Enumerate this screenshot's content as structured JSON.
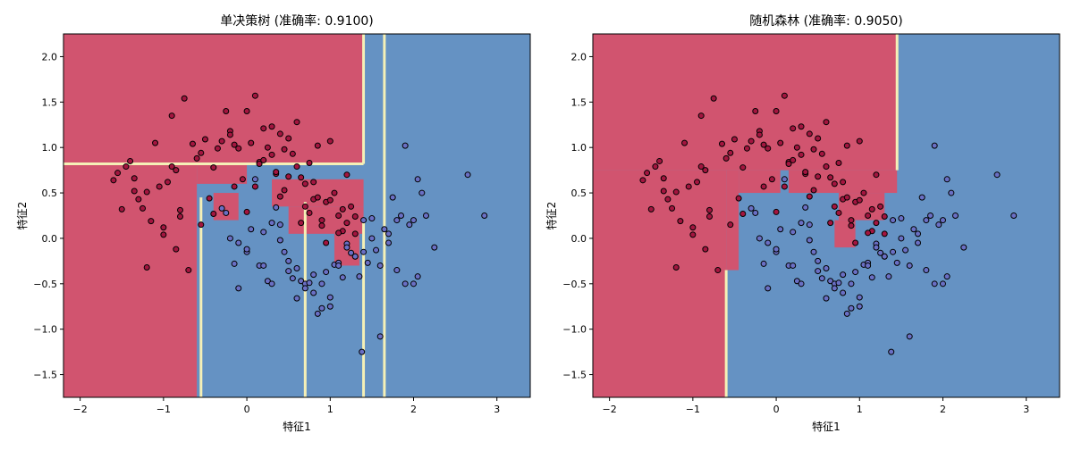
{
  "figure": {
    "colors": {
      "class0_region": "#d1546f",
      "class1_region": "#6592c3",
      "boundary_band": "#f5f0b7",
      "class0_point": "#a3153f",
      "class1_point": "#6a6fc4",
      "point_edge": "#000000"
    }
  },
  "chart_data": [
    {
      "type": "scatter",
      "title": "单决策树 (准确率: 0.9100)",
      "xlabel": "特征1",
      "ylabel": "特征2",
      "xlim": [
        -2.2,
        3.4
      ],
      "ylim": [
        -1.75,
        2.25
      ],
      "xticks": [
        -2,
        -1,
        0,
        1,
        2,
        3
      ],
      "yticks": [
        -1.5,
        -1.0,
        -0.5,
        0.0,
        0.5,
        1.0,
        1.5,
        2.0
      ],
      "ytick_labels": [
        "−1.5",
        "−1.0",
        "−0.5",
        "0.0",
        "0.5",
        "1.0",
        "1.5",
        "2.0"
      ],
      "xtick_labels": [
        "−2",
        "−1",
        "0",
        "1",
        "2",
        "3"
      ],
      "grid": false,
      "background_regions": [
        {
          "class": 1,
          "x": [
            -2.2,
            3.4
          ],
          "y": [
            -1.75,
            2.25
          ]
        },
        {
          "class": 0,
          "x": [
            -2.2,
            1.4
          ],
          "y": [
            0.82,
            2.25
          ]
        },
        {
          "class": 0,
          "x": [
            -2.2,
            -0.6
          ],
          "y": [
            -1.75,
            0.82
          ]
        },
        {
          "class": 0,
          "x": [
            -0.6,
            0.0
          ],
          "y": [
            0.6,
            0.82
          ]
        },
        {
          "class": 0,
          "x": [
            0.3,
            1.4
          ],
          "y": [
            0.35,
            0.65
          ]
        },
        {
          "class": 0,
          "x": [
            0.5,
            1.4
          ],
          "y": [
            0.05,
            0.35
          ]
        },
        {
          "class": 0,
          "x": [
            1.05,
            1.35
          ],
          "y": [
            -0.3,
            0.05
          ]
        },
        {
          "class": 0,
          "x": [
            -0.4,
            -0.1
          ],
          "y": [
            0.2,
            0.5
          ]
        }
      ],
      "boundary_lines": [
        {
          "axis": "x",
          "value": 1.4,
          "from": 0.82,
          "to": 2.25
        },
        {
          "axis": "x",
          "value": 1.65,
          "from": -1.75,
          "to": 2.25
        },
        {
          "axis": "y",
          "value": 0.82,
          "from": -2.2,
          "to": 1.4
        },
        {
          "axis": "x",
          "value": -0.55,
          "from": -1.75,
          "to": 0.45
        },
        {
          "axis": "x",
          "value": 0.7,
          "from": -1.75,
          "to": 0.4
        },
        {
          "axis": "x",
          "value": 1.4,
          "from": -1.75,
          "to": 0.2
        }
      ],
      "series": [
        {
          "class": 0,
          "x": [
            -1.6,
            -1.55,
            -1.45,
            -1.4,
            -1.35,
            -1.3,
            -1.25,
            -1.2,
            -1.15,
            -1.05,
            -1.0,
            -0.95,
            -0.9,
            -0.85,
            -0.8,
            -0.75,
            -0.7,
            -0.65,
            -0.6,
            -0.55,
            -0.5,
            -0.45,
            -0.4,
            -0.35,
            -0.3,
            -0.25,
            -0.2,
            -0.15,
            -0.1,
            -0.05,
            0.0,
            0.05,
            0.1,
            0.15,
            0.2,
            0.25,
            0.3,
            0.35,
            0.4,
            0.45,
            0.5,
            0.55,
            0.6,
            0.65,
            0.7,
            0.75,
            0.8,
            0.85,
            0.9,
            0.95,
            1.0,
            1.05,
            1.1,
            1.15,
            1.2,
            1.25,
            1.3,
            -1.0,
            -0.8,
            -1.2,
            -0.4,
            -0.2,
            0.1,
            0.3,
            0.5,
            0.7,
            0.9,
            1.1,
            1.3,
            0.2,
            0.4,
            0.6,
            0.8,
            1.0,
            1.2,
            -1.5,
            -1.1,
            -0.9,
            0.0,
            -1.35,
            -0.85,
            -0.55,
            0.95,
            0.65,
            0.35,
            0.75,
            1.15,
            -0.15,
            0.15,
            0.45,
            0.85
          ],
          "y": [
            0.64,
            0.72,
            0.79,
            0.85,
            0.52,
            0.43,
            0.33,
            0.51,
            0.19,
            0.57,
            0.12,
            0.62,
            0.79,
            0.75,
            0.31,
            1.54,
            -0.35,
            1.04,
            0.88,
            0.94,
            1.09,
            0.44,
            0.78,
            0.99,
            1.07,
            1.4,
            1.18,
            1.03,
            0.99,
            0.65,
            1.4,
            1.05,
            1.57,
            0.84,
            1.21,
            1.0,
            0.92,
            0.71,
            1.15,
            0.53,
            1.1,
            0.93,
            1.28,
            0.67,
            0.6,
            0.83,
            0.43,
            1.02,
            0.2,
            0.4,
            1.07,
            0.5,
            0.25,
            0.08,
            0.17,
            0.35,
            0.05,
            0.04,
            0.24,
            -0.32,
            0.27,
            1.14,
            0.57,
            1.23,
            0.68,
            0.35,
            0.14,
            0.06,
            0.24,
            0.86,
            0.46,
            0.79,
            0.62,
            0.42,
            0.7,
            0.32,
            1.05,
            1.35,
            0.29,
            0.66,
            -0.12,
            0.15,
            -0.05,
            0.17,
            0.73,
            0.28,
            0.32,
            0.57,
            0.82,
            0.98,
            0.45
          ],
          "point_color": "#a3153f"
        },
        {
          "class": 1,
          "x": [
            -0.25,
            -0.15,
            -0.1,
            0.0,
            0.05,
            0.1,
            0.15,
            0.2,
            0.25,
            0.3,
            0.35,
            0.4,
            0.45,
            0.5,
            0.55,
            0.6,
            0.65,
            0.7,
            0.75,
            0.8,
            0.85,
            0.9,
            0.95,
            1.0,
            1.05,
            1.1,
            1.15,
            1.2,
            1.25,
            1.3,
            1.35,
            1.4,
            1.45,
            1.5,
            1.55,
            1.6,
            1.65,
            1.7,
            1.75,
            1.8,
            1.85,
            1.9,
            1.95,
            2.0,
            2.05,
            2.1,
            2.15,
            2.25,
            2.65,
            2.85,
            1.6,
            1.38,
            0.9,
            0.6,
            0.3,
            -0.2,
            -0.1,
            0.2,
            0.5,
            0.8,
            1.1,
            1.4,
            1.7,
            2.0,
            0.7,
            1.0,
            1.3,
            0.0,
            -0.3,
            1.9,
            1.5,
            1.2,
            0.4,
            1.8,
            2.05
          ],
          "y": [
            0.28,
            -0.28,
            -0.55,
            -0.15,
            0.1,
            0.65,
            -0.3,
            0.07,
            -0.47,
            0.17,
            0.34,
            -0.02,
            -0.15,
            -0.36,
            -0.44,
            -0.33,
            -0.47,
            -0.5,
            -0.49,
            -0.6,
            -0.83,
            -0.5,
            -0.37,
            -0.75,
            -0.29,
            -0.27,
            -0.43,
            -0.06,
            -0.16,
            -0.2,
            -0.42,
            0.2,
            -0.27,
            0.22,
            -0.13,
            -0.3,
            0.1,
            -0.05,
            0.45,
            0.2,
            0.25,
            1.02,
            0.15,
            0.2,
            0.65,
            0.5,
            0.25,
            -0.1,
            0.7,
            0.25,
            -1.08,
            -1.25,
            -0.77,
            -0.66,
            -0.5,
            0.0,
            -0.05,
            -0.3,
            -0.25,
            -0.4,
            -0.3,
            -0.15,
            0.05,
            -0.5,
            -0.55,
            -0.65,
            -0.2,
            -0.12,
            0.33,
            -0.5,
            0.0,
            -0.1,
            0.15,
            -0.35,
            -0.42
          ],
          "point_color": "#6a6fc4"
        }
      ]
    },
    {
      "type": "scatter",
      "title": "随机森林 (准确率: 0.9050)",
      "xlabel": "特征1",
      "ylabel": "特征2",
      "xlim": [
        -2.2,
        3.4
      ],
      "ylim": [
        -1.75,
        2.25
      ],
      "xticks": [
        -2,
        -1,
        0,
        1,
        2,
        3
      ],
      "yticks": [
        -1.5,
        -1.0,
        -0.5,
        0.0,
        0.5,
        1.0,
        1.5,
        2.0
      ],
      "ytick_labels": [
        "−1.5",
        "−1.0",
        "−0.5",
        "0.0",
        "0.5",
        "1.0",
        "1.5",
        "2.0"
      ],
      "xtick_labels": [
        "−2",
        "−1",
        "0",
        "1",
        "2",
        "3"
      ],
      "grid": false,
      "background_regions": [
        {
          "class": 1,
          "x": [
            -2.2,
            3.4
          ],
          "y": [
            -1.75,
            2.25
          ]
        },
        {
          "class": 0,
          "x": [
            -2.2,
            1.45
          ],
          "y": [
            0.75,
            2.25
          ]
        },
        {
          "class": 0,
          "x": [
            -2.2,
            -0.6
          ],
          "y": [
            -1.75,
            0.75
          ]
        },
        {
          "class": 0,
          "x": [
            -0.6,
            -0.45
          ],
          "y": [
            -0.35,
            0.75
          ]
        },
        {
          "class": 0,
          "x": [
            -0.45,
            0.05
          ],
          "y": [
            0.5,
            0.75
          ]
        },
        {
          "class": 0,
          "x": [
            0.15,
            1.45
          ],
          "y": [
            0.5,
            0.75
          ]
        },
        {
          "class": 0,
          "x": [
            0.75,
            1.3
          ],
          "y": [
            0.2,
            0.5
          ]
        },
        {
          "class": 0,
          "x": [
            0.7,
            0.95
          ],
          "y": [
            -0.1,
            0.2
          ]
        }
      ],
      "boundary_lines": [
        {
          "axis": "x",
          "value": 1.45,
          "from": 0.75,
          "to": 2.25
        },
        {
          "axis": "x",
          "value": -0.6,
          "from": -1.75,
          "to": -0.35
        }
      ],
      "series": [
        {
          "class": 0,
          "x": [
            -1.6,
            -1.55,
            -1.45,
            -1.4,
            -1.35,
            -1.3,
            -1.25,
            -1.2,
            -1.15,
            -1.05,
            -1.0,
            -0.95,
            -0.9,
            -0.85,
            -0.8,
            -0.75,
            -0.7,
            -0.65,
            -0.6,
            -0.55,
            -0.5,
            -0.45,
            -0.4,
            -0.35,
            -0.3,
            -0.25,
            -0.2,
            -0.15,
            -0.1,
            -0.05,
            0.0,
            0.05,
            0.1,
            0.15,
            0.2,
            0.25,
            0.3,
            0.35,
            0.4,
            0.45,
            0.5,
            0.55,
            0.6,
            0.65,
            0.7,
            0.75,
            0.8,
            0.85,
            0.9,
            0.95,
            1.0,
            1.05,
            1.1,
            1.15,
            1.2,
            1.25,
            1.3,
            -1.0,
            -0.8,
            -1.2,
            -0.4,
            -0.2,
            0.1,
            0.3,
            0.5,
            0.7,
            0.9,
            1.1,
            1.3,
            0.2,
            0.4,
            0.6,
            0.8,
            1.0,
            1.2,
            -1.5,
            -1.1,
            -0.9,
            0.0,
            -1.35,
            -0.85,
            -0.55,
            0.95,
            0.65,
            0.35,
            0.75,
            1.15,
            -0.15,
            0.15,
            0.45,
            0.85
          ],
          "y": [
            0.64,
            0.72,
            0.79,
            0.85,
            0.52,
            0.43,
            0.33,
            0.51,
            0.19,
            0.57,
            0.12,
            0.62,
            0.79,
            0.75,
            0.31,
            1.54,
            -0.35,
            1.04,
            0.88,
            0.94,
            1.09,
            0.44,
            0.78,
            0.99,
            1.07,
            1.4,
            1.18,
            1.03,
            0.99,
            0.65,
            1.4,
            1.05,
            1.57,
            0.84,
            1.21,
            1.0,
            0.92,
            0.71,
            1.15,
            0.53,
            1.1,
            0.93,
            1.28,
            0.67,
            0.6,
            0.83,
            0.43,
            1.02,
            0.2,
            0.4,
            1.07,
            0.5,
            0.25,
            0.08,
            0.17,
            0.35,
            0.05,
            0.04,
            0.24,
            -0.32,
            0.27,
            1.14,
            0.57,
            1.23,
            0.68,
            0.35,
            0.14,
            0.06,
            0.24,
            0.86,
            0.46,
            0.79,
            0.62,
            0.42,
            0.7,
            0.32,
            1.05,
            1.35,
            0.29,
            0.66,
            -0.12,
            0.15,
            -0.05,
            0.17,
            0.73,
            0.28,
            0.32,
            0.57,
            0.82,
            0.98,
            0.45
          ],
          "point_color": "#a3153f"
        },
        {
          "class": 1,
          "x": [
            -0.25,
            -0.15,
            -0.1,
            0.0,
            0.05,
            0.1,
            0.15,
            0.2,
            0.25,
            0.3,
            0.35,
            0.4,
            0.45,
            0.5,
            0.55,
            0.6,
            0.65,
            0.7,
            0.75,
            0.8,
            0.85,
            0.9,
            0.95,
            1.0,
            1.05,
            1.1,
            1.15,
            1.2,
            1.25,
            1.3,
            1.35,
            1.4,
            1.45,
            1.5,
            1.55,
            1.6,
            1.65,
            1.7,
            1.75,
            1.8,
            1.85,
            1.9,
            1.95,
            2.0,
            2.05,
            2.1,
            2.15,
            2.25,
            2.65,
            2.85,
            1.6,
            1.38,
            0.9,
            0.6,
            0.3,
            -0.2,
            -0.1,
            0.2,
            0.5,
            0.8,
            1.1,
            1.4,
            1.7,
            2.0,
            0.7,
            1.0,
            1.3,
            0.0,
            -0.3,
            1.9,
            1.5,
            1.2,
            0.4,
            1.8,
            2.05
          ],
          "y": [
            0.28,
            -0.28,
            -0.55,
            -0.15,
            0.1,
            0.65,
            -0.3,
            0.07,
            -0.47,
            0.17,
            0.34,
            -0.02,
            -0.15,
            -0.36,
            -0.44,
            -0.33,
            -0.47,
            -0.5,
            -0.49,
            -0.6,
            -0.83,
            -0.5,
            -0.37,
            -0.75,
            -0.29,
            -0.27,
            -0.43,
            -0.06,
            -0.16,
            -0.2,
            -0.42,
            0.2,
            -0.27,
            0.22,
            -0.13,
            -0.3,
            0.1,
            -0.05,
            0.45,
            0.2,
            0.25,
            1.02,
            0.15,
            0.2,
            0.65,
            0.5,
            0.25,
            -0.1,
            0.7,
            0.25,
            -1.08,
            -1.25,
            -0.77,
            -0.66,
            -0.5,
            0.0,
            -0.05,
            -0.3,
            -0.25,
            -0.4,
            -0.3,
            -0.15,
            0.05,
            -0.5,
            -0.55,
            -0.65,
            -0.2,
            -0.12,
            0.33,
            -0.5,
            0.0,
            -0.1,
            0.15,
            -0.35,
            -0.42
          ],
          "point_color": "#6a6fc4"
        }
      ]
    }
  ]
}
